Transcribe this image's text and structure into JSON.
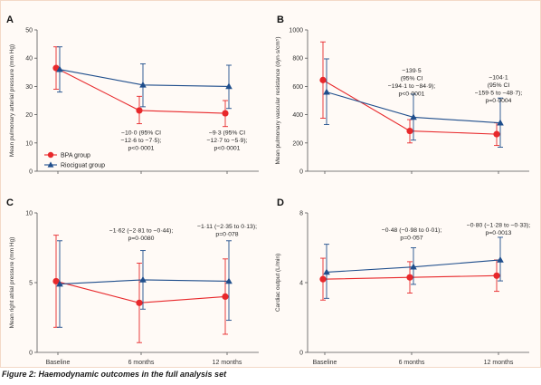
{
  "caption": "Figure 2: Haemodynamic outcomes in the full analysis set",
  "colors": {
    "bpa": "#e8282b",
    "riociguat": "#1f4e8c",
    "axis": "#555555",
    "frame_bg": "#fffaf6"
  },
  "legend": {
    "bpa": "BPA group",
    "riociguat": "Riociguat group",
    "placement": "inside-bottom-left of panel A"
  },
  "chart_data": [
    {
      "panel": "A",
      "type": "line",
      "ylabel": "Mean pulmonary arterial pressure (mm Hg)",
      "categories": [
        "Baseline",
        "6 months",
        "12 months"
      ],
      "ylim": [
        0,
        50
      ],
      "yticks": [
        0,
        10,
        20,
        30,
        40,
        50
      ],
      "ytick_labels": [
        "0",
        "10",
        "20",
        "30",
        "40",
        "50"
      ],
      "show_xtick_labels": false,
      "series": [
        {
          "name": "BPA group",
          "key": "bpa",
          "values": [
            36.5,
            21.5,
            20.5
          ],
          "err_low": [
            29.0,
            16.8,
            15.8
          ],
          "err_high": [
            44.0,
            26.5,
            25.0
          ]
        },
        {
          "name": "Riociguat group",
          "key": "riociguat",
          "values": [
            36.0,
            30.5,
            30.0
          ],
          "err_low": [
            28.0,
            22.8,
            22.2
          ],
          "err_high": [
            44.0,
            38.0,
            37.5
          ]
        }
      ],
      "annotations": [
        {
          "category": "6 months",
          "lines": [
            "−10·0 (95% CI",
            "−12·6 to −7·5);",
            "p<0·0001"
          ],
          "y_value": 13
        },
        {
          "category": "12 months",
          "lines": [
            "−9·3 (95% CI",
            "−12·7 to −5·9);",
            "p<0·0001"
          ],
          "y_value": 13
        }
      ]
    },
    {
      "panel": "B",
      "type": "line",
      "ylabel": "Mean pulmonary vascular resistance (dyn·s/cm⁵)",
      "categories": [
        "Baseline",
        "6 months",
        "12 months"
      ],
      "ylim": [
        0,
        1000
      ],
      "yticks": [
        0,
        200,
        400,
        600,
        800,
        1000
      ],
      "ytick_labels": [
        "0",
        "200",
        "400",
        "600",
        "800",
        "1000"
      ],
      "show_xtick_labels": false,
      "series": [
        {
          "name": "BPA group",
          "key": "bpa",
          "values": [
            645,
            285,
            262
          ],
          "err_low": [
            375,
            200,
            182
          ],
          "err_high": [
            915,
            365,
            342
          ]
        },
        {
          "name": "Riociguat group",
          "key": "riociguat",
          "values": [
            560,
            382,
            342
          ],
          "err_low": [
            330,
            220,
            170
          ],
          "err_high": [
            795,
            545,
            518
          ]
        }
      ],
      "annotations": [
        {
          "category": "6 months",
          "lines": [
            "−139·5",
            "(95% CI",
            "−194·1 to −84·9);",
            "p<0·0001"
          ],
          "y_value": 700
        },
        {
          "category": "12 months",
          "lines": [
            "−104·1",
            "(95% CI",
            "−159·5 to −48·7);",
            "p=0·0004"
          ],
          "y_value": 650
        }
      ]
    },
    {
      "panel": "C",
      "type": "line",
      "ylabel": "Mean right atrial pressure (mm Hg)",
      "categories": [
        "Baseline",
        "6 months",
        "12 months"
      ],
      "ylim": [
        0,
        10
      ],
      "yticks": [
        0,
        5,
        10
      ],
      "ytick_labels": [
        "0",
        "5",
        "10"
      ],
      "show_xtick_labels": true,
      "series": [
        {
          "name": "BPA group",
          "key": "bpa",
          "values": [
            5.1,
            3.55,
            4.0
          ],
          "err_low": [
            1.8,
            0.7,
            1.3
          ],
          "err_high": [
            8.4,
            6.4,
            6.7
          ]
        },
        {
          "name": "Riociguat group",
          "key": "riociguat",
          "values": [
            4.9,
            5.2,
            5.1
          ],
          "err_low": [
            1.8,
            3.1,
            2.3
          ],
          "err_high": [
            8.0,
            7.3,
            8.0
          ]
        }
      ],
      "annotations": [
        {
          "category": "6 months",
          "lines": [
            "−1·62 (−2·81 to −0·44);",
            "p=0·0080"
          ],
          "y_value": 8.6
        },
        {
          "category": "12 months",
          "lines": [
            "−1·11 (−2·35 to 0·13);",
            "p=0·078"
          ],
          "y_value": 8.9
        }
      ]
    },
    {
      "panel": "D",
      "type": "line",
      "ylabel": "Cardiac output (L/min)",
      "categories": [
        "Baseline",
        "6 months",
        "12 months"
      ],
      "ylim": [
        0,
        8
      ],
      "yticks": [
        0,
        4,
        8
      ],
      "ytick_labels": [
        "0",
        "4",
        "8"
      ],
      "show_xtick_labels": true,
      "series": [
        {
          "name": "BPA group",
          "key": "bpa",
          "values": [
            4.2,
            4.3,
            4.4
          ],
          "err_low": [
            3.0,
            3.4,
            3.5
          ],
          "err_high": [
            5.4,
            5.2,
            5.3
          ]
        },
        {
          "name": "Riociguat group",
          "key": "riociguat",
          "values": [
            4.6,
            4.9,
            5.3
          ],
          "err_low": [
            3.1,
            3.9,
            4.1
          ],
          "err_high": [
            6.2,
            6.0,
            6.6
          ]
        }
      ],
      "annotations": [
        {
          "category": "6 months",
          "lines": [
            "−0·48 (−0·98 to 0·01);",
            "p=0·057"
          ],
          "y_value": 6.9
        },
        {
          "category": "12 months",
          "lines": [
            "−0·80 (−1·28 to −0·33);",
            "p=0·0013"
          ],
          "y_value": 7.2
        }
      ]
    }
  ]
}
